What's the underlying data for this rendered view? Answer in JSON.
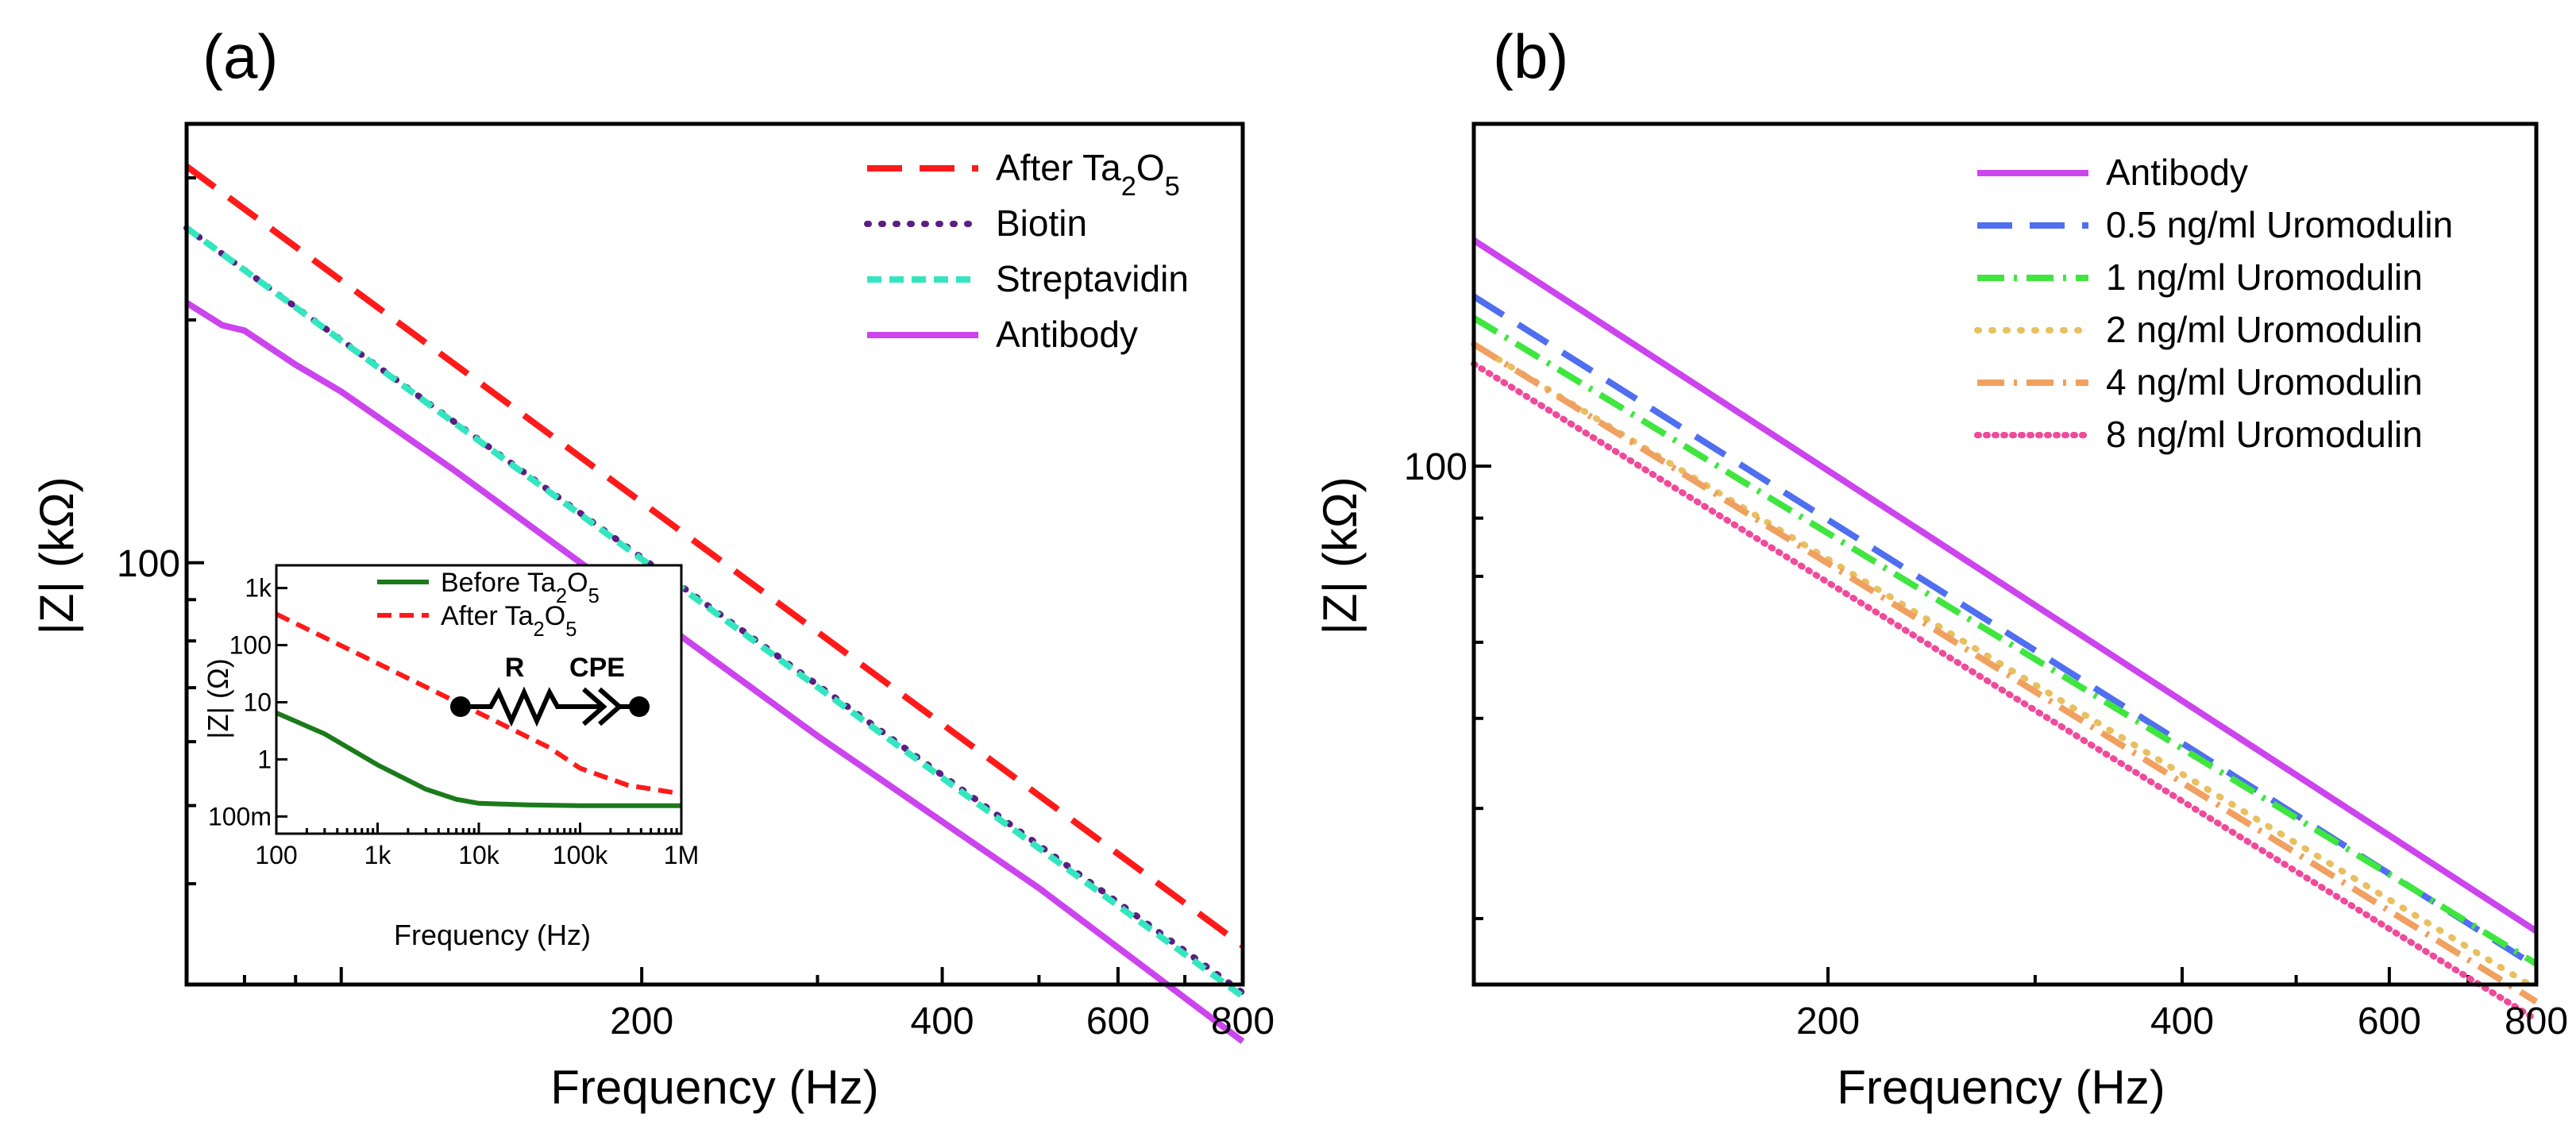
{
  "chart_data": [
    {
      "id": "a",
      "panel_label": "(a)",
      "type": "line",
      "xscale": "log",
      "yscale": "log",
      "xlim": [
        70,
        800
      ],
      "ylim": [
        30,
        350
      ],
      "xlabel": "Frequency (Hz)",
      "ylabel": "|Z| (kΩ)",
      "xticks": [
        200,
        400,
        600,
        800
      ],
      "xtick_labels": [
        "200",
        "400",
        "600",
        "800"
      ],
      "ytick_labels": [
        {
          "value": 100,
          "label": "100"
        }
      ],
      "legend_position": "top-right",
      "series": [
        {
          "name": "After Ta₂O₅",
          "color": "#ff1a1a",
          "dash": "long",
          "x": [
            70,
            800
          ],
          "y": [
            310,
            33.5
          ]
        },
        {
          "name": "Biotin",
          "color": "#5b1f82",
          "dash": "dot",
          "x": [
            70,
            800
          ],
          "y": [
            260,
            29.3
          ]
        },
        {
          "name": "Streptavidin",
          "color": "#33e6bf",
          "dash": "short",
          "x": [
            70,
            800
          ],
          "y": [
            260,
            29.0
          ]
        },
        {
          "name": "Antibody",
          "color": "#cc44ee",
          "dash": "solid",
          "x": [
            70,
            76,
            80,
            90,
            100,
            130,
            200,
            300,
            500,
            800
          ],
          "y": [
            210,
            197,
            194,
            176,
            163,
            130,
            88,
            61,
            39.5,
            25.5
          ]
        }
      ],
      "inset": {
        "type": "line",
        "xscale": "log",
        "yscale": "log",
        "xlim": [
          100,
          1000000
        ],
        "ylim": [
          0.05,
          2500
        ],
        "xlabel": "Frequency (Hz)",
        "ylabel": "|Z| (Ω)",
        "xtick_labels": [
          "100",
          "1k",
          "10k",
          "100k",
          "1M"
        ],
        "ytick_labels": [
          "100m",
          "1",
          "10",
          "100",
          "1k"
        ],
        "series": [
          {
            "name": "Before Ta₂O₅",
            "color": "#1b7a1b",
            "dash": "solid",
            "x": [
              100,
              300,
              1000,
              3000,
              6000,
              10000,
              30000,
              100000,
              1000000
            ],
            "y": [
              6.5,
              2.8,
              0.8,
              0.3,
              0.2,
              0.17,
              0.16,
              0.155,
              0.155
            ]
          },
          {
            "name": "After Ta₂O₅",
            "color": "#ff1a1a",
            "dash": "short",
            "x": [
              100,
              1000,
              10000,
              50000,
              100000,
              300000,
              1000000
            ],
            "y": [
              350,
              48,
              6.5,
              1.6,
              0.7,
              0.35,
              0.25
            ]
          }
        ],
        "circuit": {
          "labels": [
            "R",
            "CPE"
          ]
        }
      }
    },
    {
      "id": "b",
      "panel_label": "(b)",
      "type": "line",
      "xscale": "log",
      "yscale": "log",
      "xlim": [
        100,
        800
      ],
      "ylim": [
        35,
        200
      ],
      "xlabel": "Frequency (Hz)",
      "ylabel": "|Z| (kΩ)",
      "xticks": [
        200,
        400,
        600,
        800
      ],
      "xtick_labels": [
        "200",
        "400",
        "600",
        "800"
      ],
      "ytick_labels": [
        {
          "value": 100,
          "label": "100"
        }
      ],
      "legend_position": "top-right",
      "series": [
        {
          "name": "Antibody",
          "color": "#cc44ee",
          "dash": "solid",
          "x": [
            100,
            800
          ],
          "y": [
            158,
            39.0
          ]
        },
        {
          "name": "0.5 ng/ml Uromodulin",
          "color": "#4f6ff0",
          "dash": "long",
          "x": [
            100,
            800
          ],
          "y": [
            141,
            36.3
          ]
        },
        {
          "name": "1 ng/ml Uromodulin",
          "color": "#3ee63e",
          "dash": "dashdot",
          "x": [
            100,
            800
          ],
          "y": [
            135,
            36.5
          ]
        },
        {
          "name": "2 ng/ml Uromodulin",
          "color": "#e8c060",
          "dash": "dot",
          "x": [
            100,
            800
          ],
          "y": [
            128,
            34.7
          ]
        },
        {
          "name": "4 ng/ml Uromodulin",
          "color": "#f0a060",
          "dash": "dashdot",
          "x": [
            100,
            800
          ],
          "y": [
            128,
            33.8
          ]
        },
        {
          "name": "8 ng/ml Uromodulin",
          "color": "#f04a9a",
          "dash": "fine",
          "x": [
            100,
            800
          ],
          "y": [
            123,
            32.6
          ]
        }
      ]
    }
  ]
}
